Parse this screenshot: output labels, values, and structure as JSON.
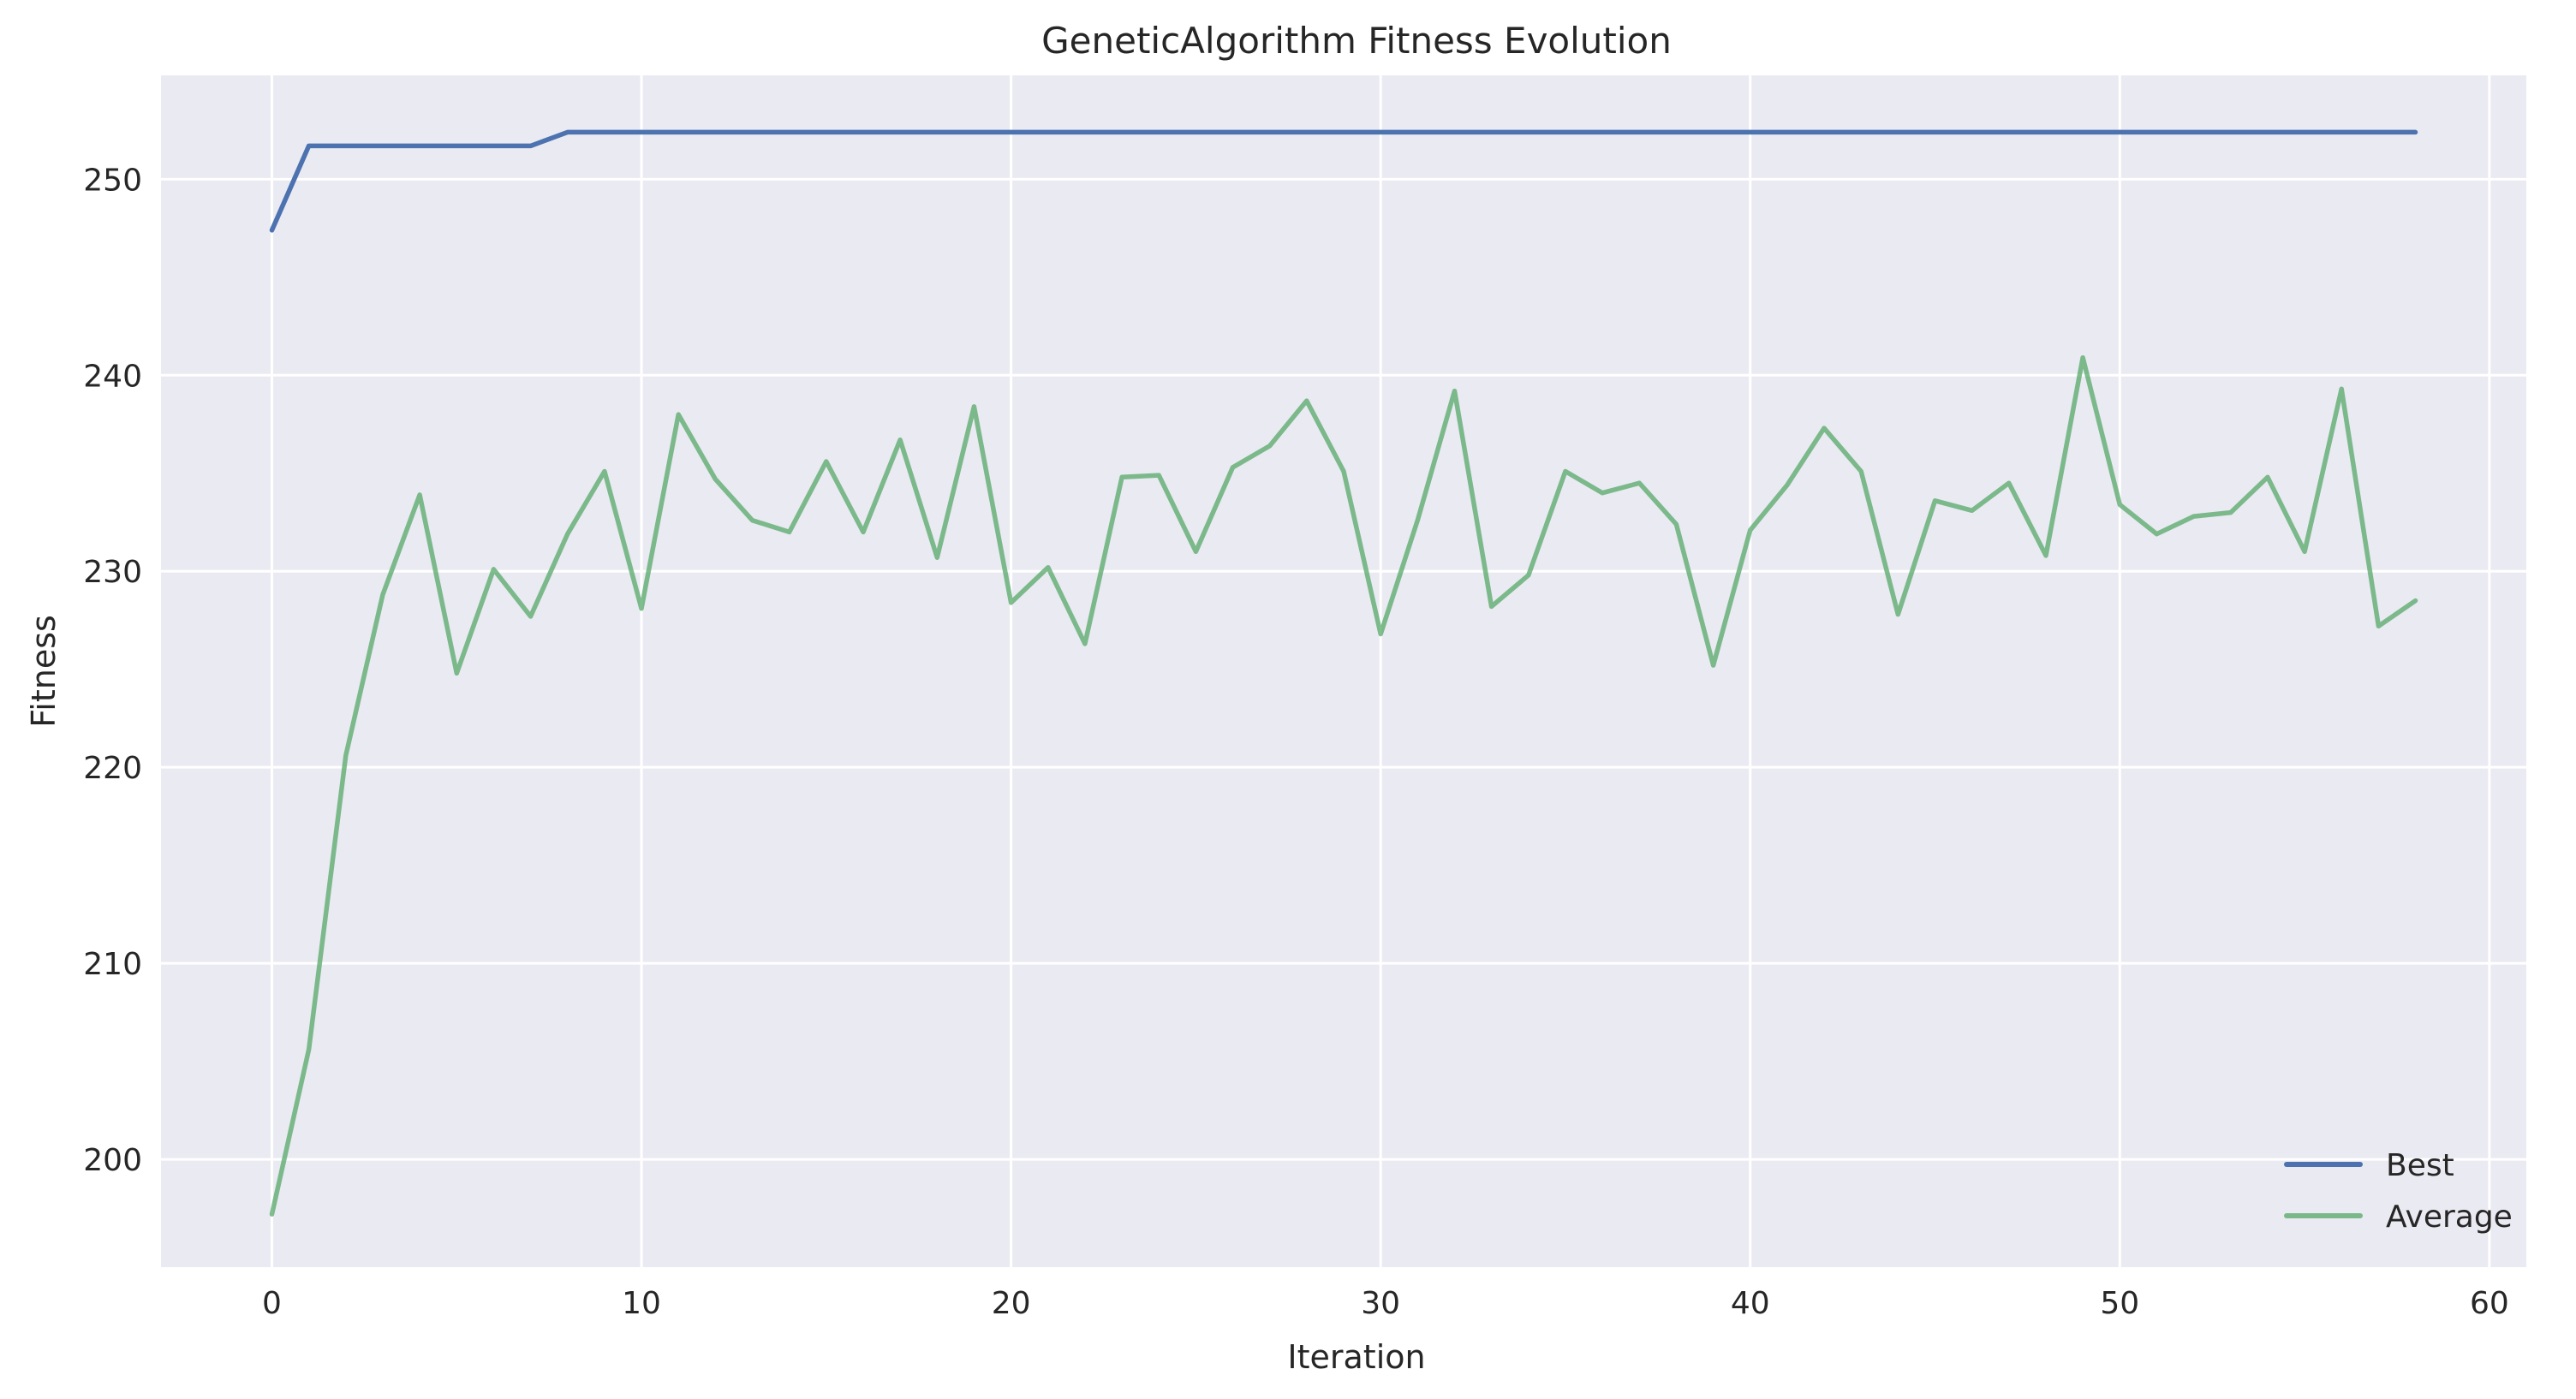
{
  "chart_data": {
    "type": "line",
    "title": "GeneticAlgorithm Fitness Evolution",
    "xlabel": "Iteration",
    "ylabel": "Fitness",
    "xlim": [
      -3,
      61
    ],
    "ylim": [
      194.5,
      255.3
    ],
    "xticks": [
      0,
      10,
      20,
      30,
      40,
      50,
      60
    ],
    "yticks": [
      200,
      210,
      220,
      230,
      240,
      250
    ],
    "grid": true,
    "legend_position": "bottom-right",
    "series": [
      {
        "name": "Best",
        "color": "#4c72b0",
        "x": [
          0,
          1,
          2,
          3,
          4,
          5,
          6,
          7,
          8,
          9,
          10,
          11,
          12,
          13,
          14,
          15,
          16,
          17,
          18,
          19,
          20,
          21,
          22,
          23,
          24,
          25,
          26,
          27,
          28,
          29,
          30,
          31,
          32,
          33,
          34,
          35,
          36,
          37,
          38,
          39,
          40,
          41,
          42,
          43,
          44,
          45,
          46,
          47,
          48,
          49,
          50,
          51,
          52,
          53,
          54,
          55,
          56,
          57,
          58
        ],
        "values": [
          247.4,
          251.7,
          251.7,
          251.7,
          251.7,
          251.7,
          251.7,
          251.7,
          252.4,
          252.4,
          252.4,
          252.4,
          252.4,
          252.4,
          252.4,
          252.4,
          252.4,
          252.4,
          252.4,
          252.4,
          252.4,
          252.4,
          252.4,
          252.4,
          252.4,
          252.4,
          252.4,
          252.4,
          252.4,
          252.4,
          252.4,
          252.4,
          252.4,
          252.4,
          252.4,
          252.4,
          252.4,
          252.4,
          252.4,
          252.4,
          252.4,
          252.4,
          252.4,
          252.4,
          252.4,
          252.4,
          252.4,
          252.4,
          252.4,
          252.4,
          252.4,
          252.4,
          252.4,
          252.4,
          252.4,
          252.4,
          252.4,
          252.4,
          252.4
        ]
      },
      {
        "name": "Average",
        "color": "#55a868",
        "x": [
          0,
          1,
          2,
          3,
          4,
          5,
          6,
          7,
          8,
          9,
          10,
          11,
          12,
          13,
          14,
          15,
          16,
          17,
          18,
          19,
          20,
          21,
          22,
          23,
          24,
          25,
          26,
          27,
          28,
          29,
          30,
          31,
          32,
          33,
          34,
          35,
          36,
          37,
          38,
          39,
          40,
          41,
          42,
          43,
          44,
          45,
          46,
          47,
          48,
          49,
          50,
          51,
          52,
          53,
          54,
          55,
          56,
          57,
          58
        ],
        "values": [
          197.2,
          205.6,
          220.6,
          228.8,
          233.9,
          224.8,
          230.1,
          227.7,
          231.9,
          235.1,
          228.1,
          238.0,
          234.7,
          232.6,
          232.0,
          235.6,
          232.0,
          236.7,
          230.7,
          238.4,
          228.4,
          230.2,
          226.3,
          234.8,
          234.9,
          231.0,
          235.3,
          236.4,
          238.7,
          235.1,
          226.8,
          232.6,
          239.2,
          228.2,
          229.8,
          235.1,
          234.0,
          234.5,
          232.4,
          225.2,
          232.1,
          234.4,
          237.3,
          235.1,
          227.8,
          233.6,
          233.1,
          234.5,
          230.8,
          240.9,
          233.4,
          231.9,
          232.8,
          233.0,
          234.8,
          231.0,
          239.3,
          227.2,
          228.5
        ]
      }
    ]
  }
}
